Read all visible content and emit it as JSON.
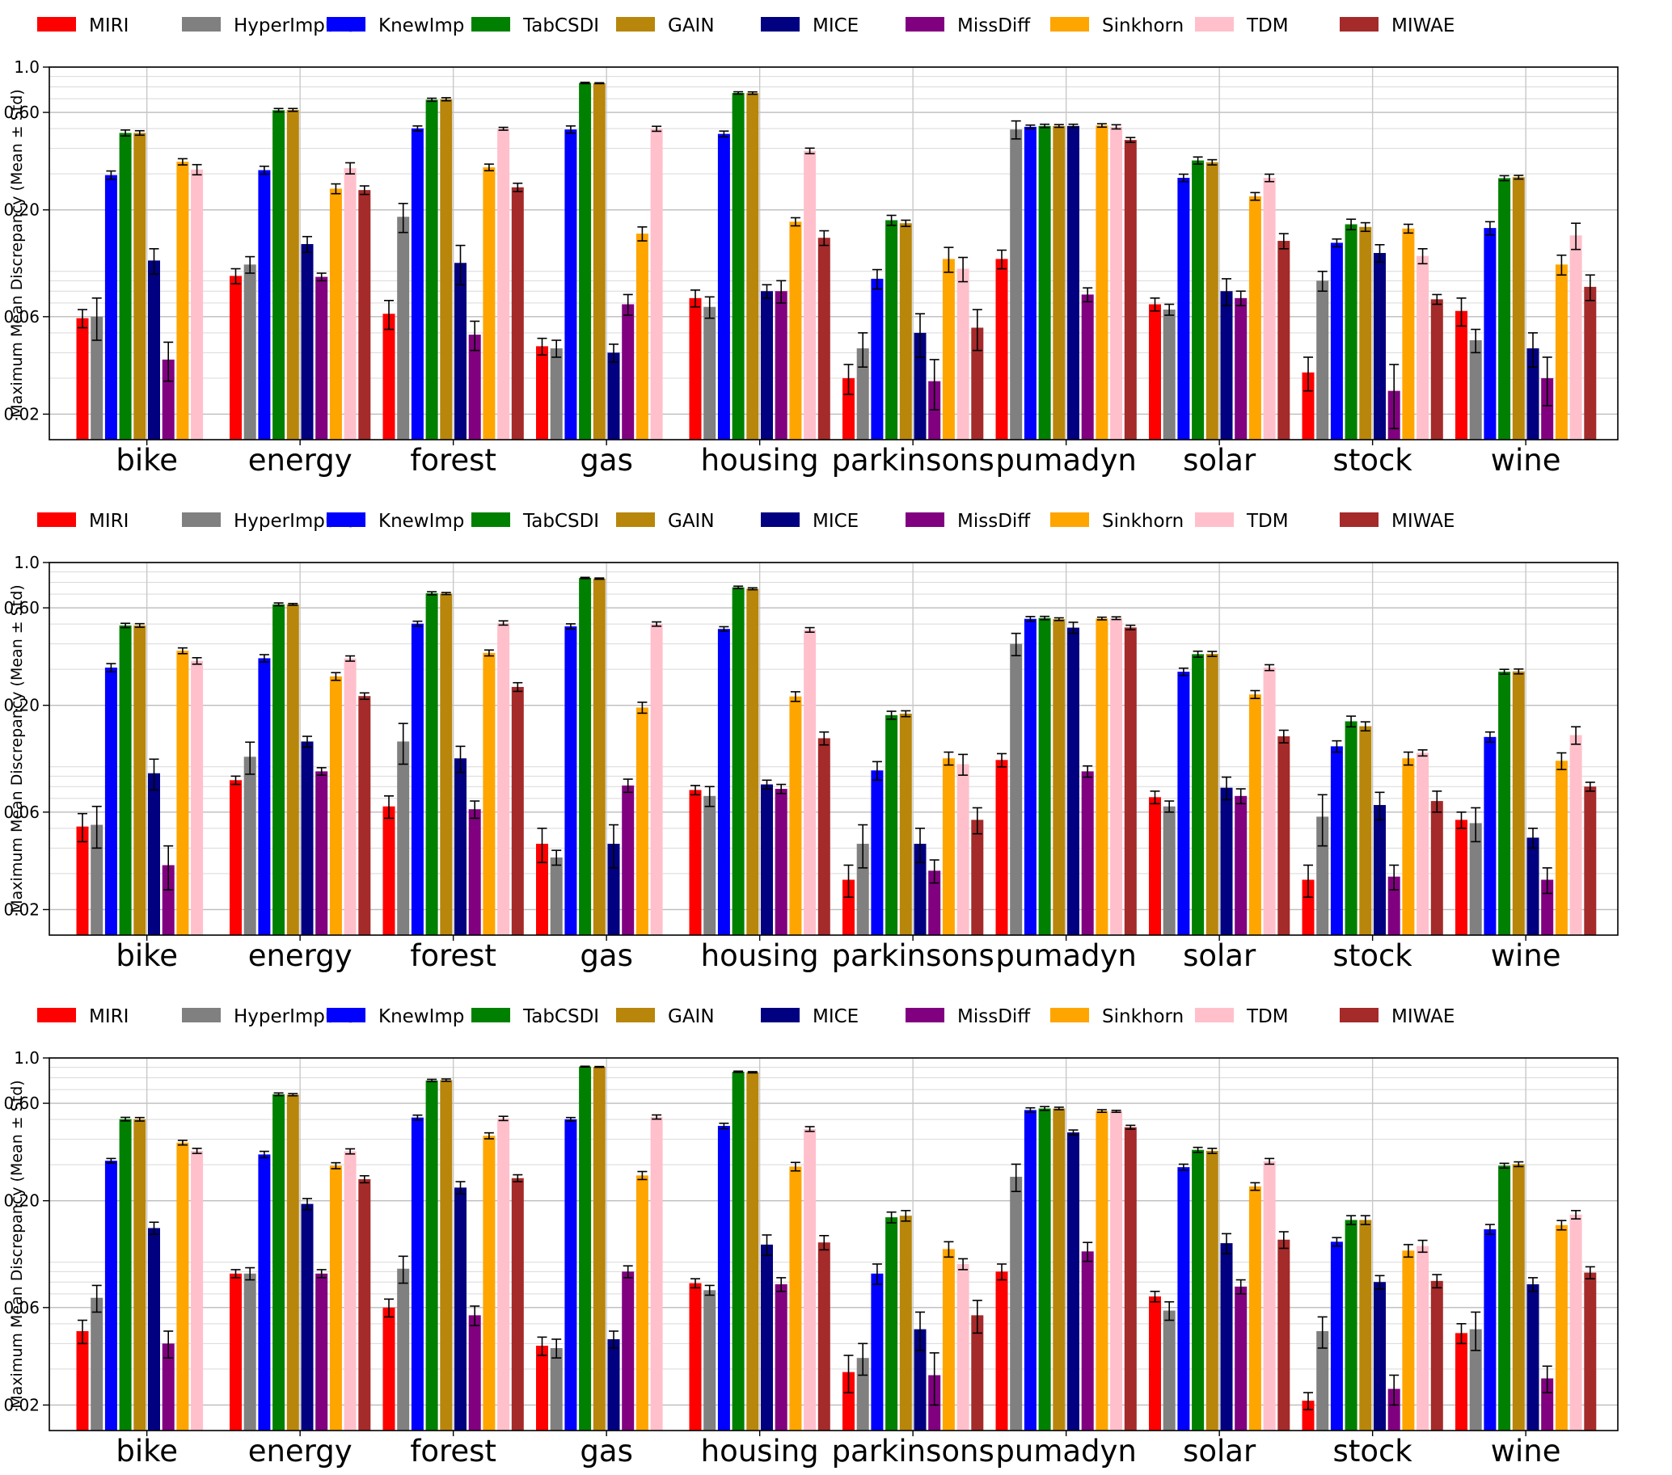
{
  "colors": {
    "MIRI": "#ff0000",
    "HyperImpute": "#808080",
    "KnewImp": "#0000ff",
    "TabCSDI": "#008000",
    "GAIN": "#b8860b",
    "MICE": "#000080",
    "MissDiff": "#800080",
    "Sinkhorn": "#ffa500",
    "TDM": "#ffc0cb",
    "MIWAE": "#a52a2a"
  },
  "chart_data": [
    {
      "type": "bar",
      "ylabel": "Maximum Mean Discrepancy (Mean ± Std)",
      "yscale": "log",
      "ylim": [
        0.015,
        1.0
      ],
      "yticks": [
        {
          "value": 1.0,
          "label": "1.0"
        },
        {
          "value": 0.6,
          "label": "0.60"
        },
        {
          "value": 0.2,
          "label": "0.20"
        },
        {
          "value": 0.06,
          "label": "0.06"
        },
        {
          "value": 0.02,
          "label": "0.02"
        }
      ],
      "grid": true,
      "legend": "top",
      "categories": [
        "bike",
        "energy",
        "forest",
        "gas",
        "housing",
        "parkinsons",
        "pumadyn",
        "solar",
        "stock",
        "wine"
      ],
      "series": [
        {
          "name": "MIRI",
          "values": [
            0.059,
            0.095,
            0.062,
            0.043,
            0.074,
            0.03,
            0.115,
            0.069,
            0.032,
            0.064
          ],
          "std": [
            0.006,
            0.008,
            0.01,
            0.004,
            0.007,
            0.005,
            0.012,
            0.005,
            0.006,
            0.01
          ]
        },
        {
          "name": "HyperImpute",
          "values": [
            0.06,
            0.108,
            0.185,
            0.042,
            0.067,
            0.042,
            0.495,
            0.065,
            0.09,
            0.046
          ],
          "std": [
            0.014,
            0.01,
            0.03,
            0.004,
            0.008,
            0.008,
            0.05,
            0.004,
            0.01,
            0.006
          ]
        },
        {
          "name": "KnewImp",
          "values": [
            0.296,
            0.313,
            0.501,
            0.495,
            0.471,
            0.092,
            0.51,
            0.287,
            0.138,
            0.163
          ],
          "std": [
            0.014,
            0.014,
            0.014,
            0.02,
            0.015,
            0.01,
            0.01,
            0.012,
            0.006,
            0.012
          ]
        },
        {
          "name": "TabCSDI",
          "values": [
            0.476,
            0.615,
            0.692,
            0.836,
            0.747,
            0.178,
            0.515,
            0.349,
            0.17,
            0.286
          ],
          "std": [
            0.016,
            0.012,
            0.012,
            0.006,
            0.01,
            0.01,
            0.01,
            0.014,
            0.01,
            0.008
          ]
        },
        {
          "name": "GAIN",
          "values": [
            0.476,
            0.617,
            0.696,
            0.834,
            0.746,
            0.172,
            0.515,
            0.342,
            0.165,
            0.289
          ],
          "std": [
            0.012,
            0.01,
            0.012,
            0.004,
            0.01,
            0.006,
            0.008,
            0.01,
            0.008,
            0.006
          ]
        },
        {
          "name": "MICE",
          "values": [
            0.113,
            0.136,
            0.11,
            0.04,
            0.08,
            0.05,
            0.515,
            0.08,
            0.123,
            0.042
          ],
          "std": [
            0.016,
            0.012,
            0.024,
            0.004,
            0.006,
            0.012,
            0.01,
            0.012,
            0.012,
            0.008
          ]
        },
        {
          "name": "MissDiff",
          "values": [
            0.037,
            0.094,
            0.049,
            0.069,
            0.08,
            0.029,
            0.077,
            0.074,
            0.026,
            0.03
          ],
          "std": [
            0.008,
            0.004,
            0.008,
            0.008,
            0.01,
            0.008,
            0.006,
            0.006,
            0.009,
            0.008
          ]
        },
        {
          "name": "Sinkhorn",
          "values": [
            0.344,
            0.254,
            0.323,
            0.153,
            0.175,
            0.115,
            0.518,
            0.233,
            0.162,
            0.108
          ],
          "std": [
            0.012,
            0.014,
            0.012,
            0.012,
            0.008,
            0.016,
            0.01,
            0.01,
            0.008,
            0.012
          ]
        },
        {
          "name": "TDM",
          "values": [
            0.315,
            0.32,
            0.499,
            0.499,
            0.389,
            0.103,
            0.51,
            0.287,
            0.119,
            0.15
          ],
          "std": [
            0.018,
            0.02,
            0.008,
            0.014,
            0.012,
            0.014,
            0.012,
            0.012,
            0.01,
            0.022
          ]
        },
        {
          "name": "MIWAE",
          "values": [
            null,
            0.25,
            0.258,
            null,
            0.146,
            0.053,
            0.44,
            0.141,
            0.073,
            0.084
          ],
          "std": [
            0,
            0.012,
            0.012,
            0,
            0.012,
            0.012,
            0.012,
            0.012,
            0.004,
            0.012
          ]
        }
      ]
    },
    {
      "type": "bar",
      "ylabel": "Maximum Mean Discrepancy (Mean ± Std)",
      "yscale": "log",
      "ylim": [
        0.015,
        1.0
      ],
      "yticks": [
        {
          "value": 1.0,
          "label": "1.0"
        },
        {
          "value": 0.6,
          "label": "0.60"
        },
        {
          "value": 0.2,
          "label": "0.20"
        },
        {
          "value": 0.06,
          "label": "0.06"
        },
        {
          "value": 0.02,
          "label": "0.02"
        }
      ],
      "grid": true,
      "legend": "top",
      "categories": [
        "bike",
        "energy",
        "forest",
        "gas",
        "housing",
        "parkinsons",
        "pumadyn",
        "solar",
        "stock",
        "wine"
      ],
      "series": [
        {
          "name": "MIRI",
          "values": [
            0.051,
            0.086,
            0.064,
            0.042,
            0.077,
            0.028,
            0.108,
            0.071,
            0.028,
            0.055
          ],
          "std": [
            0.008,
            0.004,
            0.008,
            0.008,
            0.004,
            0.005,
            0.008,
            0.005,
            0.005,
            0.005
          ]
        },
        {
          "name": "HyperImpute",
          "values": [
            0.052,
            0.112,
            0.133,
            0.036,
            0.072,
            0.042,
            0.4,
            0.064,
            0.057,
            0.053
          ],
          "std": [
            0.012,
            0.02,
            0.03,
            0.003,
            0.008,
            0.01,
            0.05,
            0.004,
            0.016,
            0.01
          ]
        },
        {
          "name": "KnewImp",
          "values": [
            0.306,
            0.34,
            0.502,
            0.487,
            0.473,
            0.096,
            0.53,
            0.292,
            0.126,
            0.14
          ],
          "std": [
            0.014,
            0.014,
            0.014,
            0.014,
            0.012,
            0.01,
            0.014,
            0.012,
            0.008,
            0.008
          ]
        },
        {
          "name": "TabCSDI",
          "values": [
            0.492,
            0.624,
            0.707,
            0.84,
            0.756,
            0.179,
            0.535,
            0.356,
            0.167,
            0.292
          ],
          "std": [
            0.012,
            0.01,
            0.012,
            0.006,
            0.01,
            0.008,
            0.01,
            0.012,
            0.01,
            0.008
          ]
        },
        {
          "name": "GAIN",
          "values": [
            0.492,
            0.624,
            0.705,
            0.834,
            0.744,
            0.182,
            0.528,
            0.357,
            0.158,
            0.293
          ],
          "std": [
            0.01,
            0.006,
            0.008,
            0.006,
            0.008,
            0.006,
            0.008,
            0.01,
            0.008,
            0.008
          ]
        },
        {
          "name": "MICE",
          "values": [
            0.093,
            0.133,
            0.11,
            0.042,
            0.082,
            0.042,
            0.48,
            0.079,
            0.065,
            0.045
          ],
          "std": [
            0.016,
            0.008,
            0.016,
            0.01,
            0.004,
            0.008,
            0.03,
            0.01,
            0.01,
            0.005
          ]
        },
        {
          "name": "MissDiff",
          "values": [
            0.033,
            0.095,
            0.062,
            0.081,
            0.078,
            0.031,
            0.095,
            0.072,
            0.029,
            0.028
          ],
          "std": [
            0.008,
            0.004,
            0.006,
            0.006,
            0.004,
            0.004,
            0.006,
            0.006,
            0.004,
            0.004
          ]
        },
        {
          "name": "Sinkhorn",
          "values": [
            0.37,
            0.277,
            0.361,
            0.195,
            0.221,
            0.11,
            0.532,
            0.226,
            0.11,
            0.107
          ],
          "std": [
            0.012,
            0.012,
            0.012,
            0.012,
            0.012,
            0.008,
            0.008,
            0.01,
            0.008,
            0.01
          ]
        },
        {
          "name": "TDM",
          "values": [
            0.33,
            0.339,
            0.506,
            0.5,
            0.468,
            0.103,
            0.534,
            0.306,
            0.117,
            0.143
          ],
          "std": [
            0.012,
            0.01,
            0.012,
            0.012,
            0.012,
            0.012,
            0.008,
            0.01,
            0.004,
            0.014
          ]
        },
        {
          "name": "MIWAE",
          "values": [
            null,
            0.222,
            0.246,
            null,
            0.138,
            0.055,
            0.481,
            0.141,
            0.068,
            0.08
          ],
          "std": [
            0,
            0.008,
            0.012,
            0,
            0.01,
            0.008,
            0.012,
            0.01,
            0.008,
            0.004
          ]
        }
      ]
    },
    {
      "type": "bar",
      "ylabel": "Maximum Mean Discrepancy (Mean ± Std)",
      "yscale": "log",
      "ylim": [
        0.015,
        1.0
      ],
      "yticks": [
        {
          "value": 1.0,
          "label": "1.0"
        },
        {
          "value": 0.6,
          "label": "0.60"
        },
        {
          "value": 0.2,
          "label": "0.20"
        },
        {
          "value": 0.06,
          "label": "0.06"
        },
        {
          "value": 0.02,
          "label": "0.02"
        }
      ],
      "grid": true,
      "legend": "top",
      "categories": [
        "bike",
        "energy",
        "forest",
        "gas",
        "housing",
        "parkinsons",
        "pumadyn",
        "solar",
        "stock",
        "wine"
      ],
      "series": [
        {
          "name": "MIRI",
          "values": [
            0.046,
            0.088,
            0.06,
            0.039,
            0.079,
            0.029,
            0.09,
            0.068,
            0.021,
            0.045
          ],
          "std": [
            0.006,
            0.004,
            0.006,
            0.004,
            0.004,
            0.006,
            0.008,
            0.004,
            0.002,
            0.005
          ]
        },
        {
          "name": "HyperImpute",
          "values": [
            0.067,
            0.088,
            0.093,
            0.038,
            0.073,
            0.034,
            0.262,
            0.058,
            0.046,
            0.047
          ],
          "std": [
            0.01,
            0.006,
            0.014,
            0.004,
            0.004,
            0.006,
            0.04,
            0.006,
            0.008,
            0.01
          ]
        },
        {
          "name": "KnewImp",
          "values": [
            0.314,
            0.337,
            0.511,
            0.501,
            0.465,
            0.088,
            0.556,
            0.292,
            0.126,
            0.145
          ],
          "std": [
            0.008,
            0.012,
            0.014,
            0.01,
            0.014,
            0.01,
            0.014,
            0.01,
            0.006,
            0.008
          ]
        },
        {
          "name": "TabCSDI",
          "values": [
            0.502,
            0.664,
            0.776,
            0.907,
            0.856,
            0.166,
            0.566,
            0.355,
            0.161,
            0.297
          ],
          "std": [
            0.01,
            0.01,
            0.01,
            0.004,
            0.006,
            0.01,
            0.012,
            0.01,
            0.008,
            0.008
          ]
        },
        {
          "name": "GAIN",
          "values": [
            0.501,
            0.661,
            0.779,
            0.904,
            0.851,
            0.169,
            0.566,
            0.351,
            0.161,
            0.302
          ],
          "std": [
            0.01,
            0.008,
            0.01,
            0.004,
            0.006,
            0.01,
            0.008,
            0.01,
            0.008,
            0.008
          ]
        },
        {
          "name": "MICE",
          "values": [
            0.147,
            0.193,
            0.232,
            0.042,
            0.122,
            0.047,
            0.432,
            0.124,
            0.08,
            0.078
          ],
          "std": [
            0.01,
            0.012,
            0.016,
            0.004,
            0.014,
            0.01,
            0.012,
            0.014,
            0.006,
            0.006
          ]
        },
        {
          "name": "MissDiff",
          "values": [
            0.04,
            0.088,
            0.055,
            0.09,
            0.078,
            0.028,
            0.113,
            0.076,
            0.024,
            0.027
          ],
          "std": [
            0.006,
            0.004,
            0.006,
            0.006,
            0.006,
            0.008,
            0.012,
            0.006,
            0.004,
            0.004
          ]
        },
        {
          "name": "Sinkhorn",
          "values": [
            0.385,
            0.297,
            0.416,
            0.266,
            0.294,
            0.116,
            0.55,
            0.235,
            0.114,
            0.152
          ],
          "std": [
            0.01,
            0.01,
            0.014,
            0.012,
            0.014,
            0.01,
            0.008,
            0.01,
            0.008,
            0.008
          ]
        },
        {
          "name": "TDM",
          "values": [
            0.351,
            0.349,
            0.506,
            0.514,
            0.449,
            0.098,
            0.548,
            0.312,
            0.12,
            0.171
          ],
          "std": [
            0.01,
            0.01,
            0.012,
            0.012,
            0.012,
            0.006,
            0.006,
            0.01,
            0.008,
            0.008
          ]
        },
        {
          "name": "MIWAE",
          "values": [
            null,
            0.255,
            0.258,
            null,
            0.125,
            0.055,
            0.458,
            0.129,
            0.081,
            0.089
          ],
          "std": [
            0,
            0.01,
            0.01,
            0,
            0.01,
            0.01,
            0.01,
            0.012,
            0.006,
            0.006
          ]
        }
      ]
    }
  ]
}
